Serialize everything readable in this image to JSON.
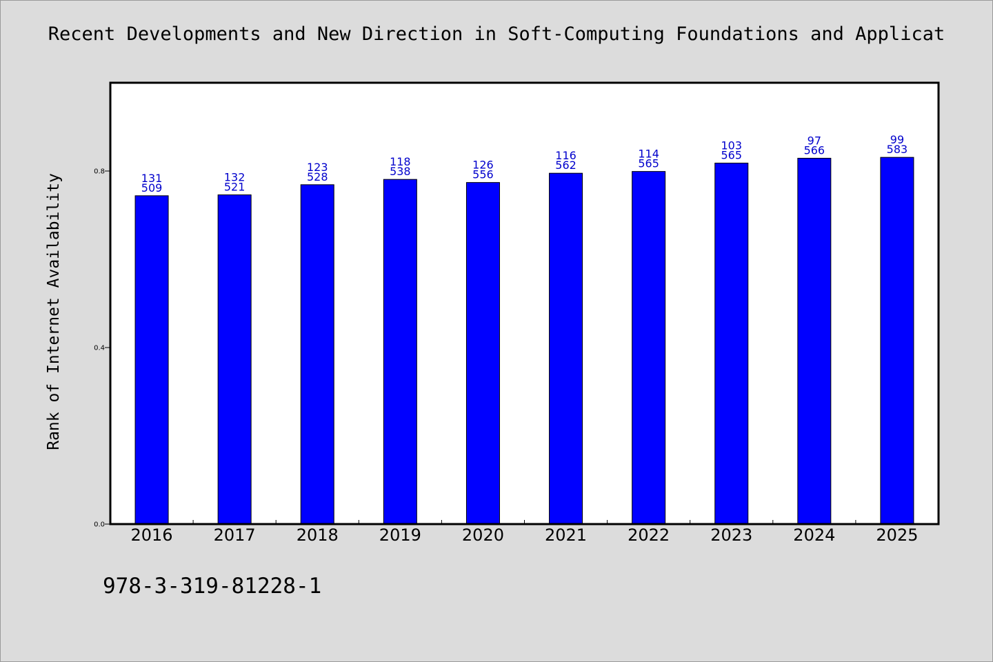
{
  "chart_data": {
    "type": "bar",
    "title": "Recent Developments and New Direction in Soft-Computing Foundations and Applicat",
    "ylabel": "Rank of Internet Availability",
    "xlabel": "",
    "categories": [
      "2016",
      "2017",
      "2018",
      "2019",
      "2020",
      "2021",
      "2022",
      "2023",
      "2024",
      "2025"
    ],
    "series": [
      {
        "values": [
          0.744,
          0.746,
          0.769,
          0.781,
          0.774,
          0.795,
          0.799,
          0.818,
          0.829,
          0.831
        ],
        "color": "#0000ff",
        "label_top": [
          "131",
          "132",
          "123",
          "118",
          "126",
          "116",
          "114",
          "103",
          "97",
          "99"
        ],
        "label_bottom": [
          "509",
          "521",
          "528",
          "538",
          "556",
          "562",
          "565",
          "565",
          "566",
          "583"
        ]
      }
    ],
    "ylim": [
      0,
      1.0
    ],
    "yticks": [
      0.0,
      0.4,
      0.8
    ],
    "ytick_labels": [
      "0.0",
      "0.4",
      "0.8"
    ],
    "grid": false,
    "legend": "none"
  },
  "footnote": "978-3-319-81228-1",
  "colors": {
    "background": "#dcdcdc",
    "plot_background": "#ffffff",
    "bar": "#0000ff",
    "data_label": "#0000cc"
  }
}
